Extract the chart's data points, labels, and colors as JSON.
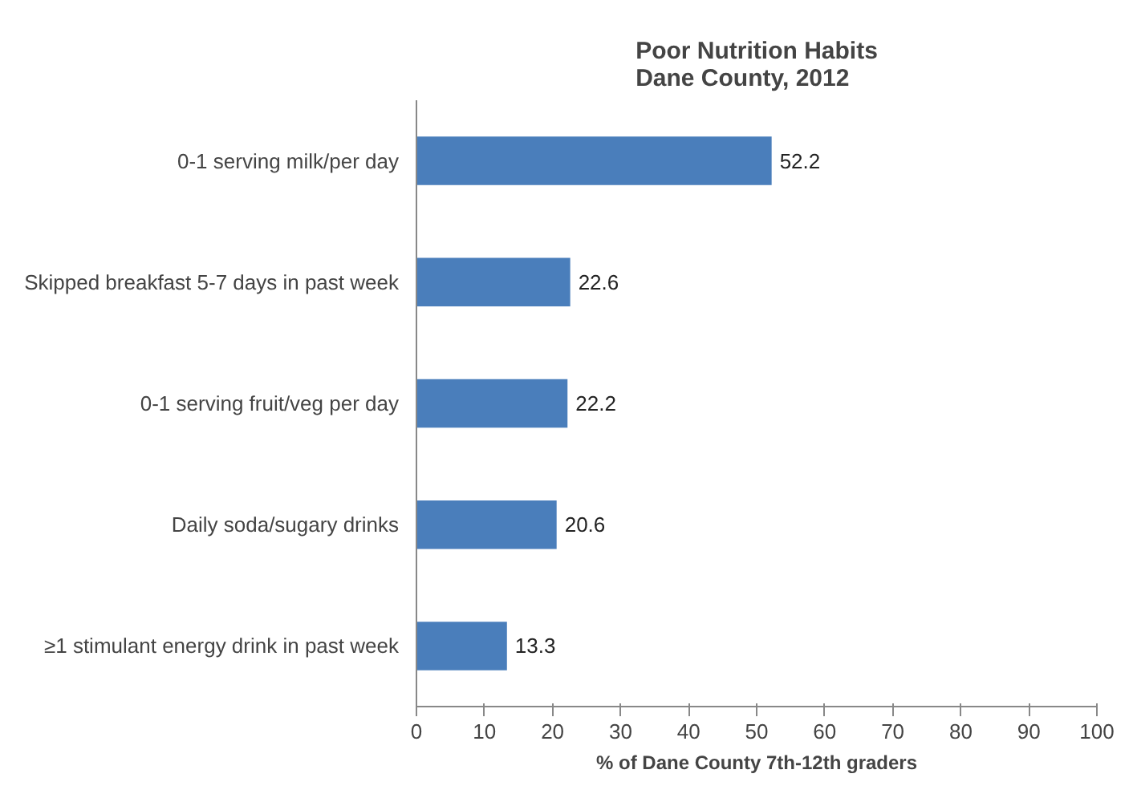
{
  "chart_data": {
    "type": "bar",
    "orientation": "horizontal",
    "title": "Poor Nutrition Habits\nDane County, 2012",
    "categories": [
      "0-1 serving milk/per day",
      "Skipped breakfast 5-7 days in past week",
      "0-1 serving fruit/veg per day",
      "Daily soda/sugary drinks",
      "≥1 stimulant energy drink in past week"
    ],
    "values": [
      52.2,
      22.6,
      22.2,
      20.6,
      13.3
    ],
    "color": "#4a7ebb",
    "xlim": [
      0,
      100
    ],
    "xticks": [
      0,
      10,
      20,
      30,
      40,
      50,
      60,
      70,
      80,
      90,
      100
    ],
    "xlabel": "% of Dane County 7th-12th graders",
    "data_labels": true,
    "grid": false
  }
}
